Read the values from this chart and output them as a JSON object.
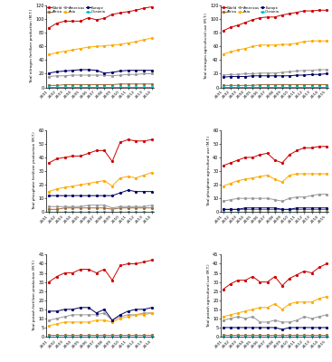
{
  "years_prod": [
    2001,
    2002,
    2003,
    2004,
    2005,
    2006,
    2007,
    2008,
    2009,
    2010,
    2011,
    2012,
    2013,
    2014
  ],
  "years_use": [
    2001,
    2002,
    2003,
    2004,
    2005,
    2006,
    2007,
    2008,
    2009,
    2010,
    2011,
    2012,
    2013,
    2014,
    2015
  ],
  "colors": {
    "World": "#cc0000",
    "Africa": "#996633",
    "Americas": "#999999",
    "Asia": "#ffaa00",
    "Europe": "#000066",
    "Oceania": "#00bbcc"
  },
  "N_prod": {
    "World": [
      87,
      94,
      97,
      97,
      97,
      102,
      99,
      101,
      107,
      109,
      111,
      113,
      116,
      118
    ],
    "Asia": [
      48,
      51,
      53,
      55,
      57,
      59,
      60,
      61,
      62,
      63,
      65,
      67,
      70,
      72
    ],
    "Europe": [
      21,
      23,
      24,
      25,
      26,
      26,
      25,
      21,
      22,
      24,
      25,
      25,
      25,
      25
    ],
    "Americas": [
      16,
      17,
      17,
      18,
      18,
      18,
      18,
      18,
      17,
      18,
      19,
      19,
      20,
      20
    ],
    "Africa": [
      3,
      3,
      4,
      4,
      4,
      4,
      4,
      4,
      4,
      5,
      5,
      5,
      5,
      5
    ],
    "Oceania": [
      1,
      1,
      1,
      1,
      1,
      1,
      1,
      1,
      1,
      1,
      1,
      1,
      1,
      1
    ]
  },
  "N_use": {
    "World": [
      83,
      88,
      91,
      95,
      99,
      102,
      103,
      103,
      106,
      108,
      110,
      112,
      112,
      113,
      113
    ],
    "Asia": [
      49,
      52,
      55,
      57,
      60,
      62,
      62,
      62,
      63,
      63,
      65,
      67,
      68,
      68,
      68
    ],
    "Americas": [
      18,
      19,
      19,
      20,
      20,
      21,
      21,
      21,
      22,
      23,
      24,
      25,
      25,
      26,
      26
    ],
    "Europe": [
      15,
      16,
      16,
      16,
      17,
      17,
      17,
      17,
      17,
      17,
      18,
      18,
      19,
      19,
      20
    ],
    "Africa": [
      3,
      3,
      3,
      3,
      3,
      4,
      4,
      4,
      4,
      4,
      4,
      4,
      4,
      4,
      4
    ],
    "Oceania": [
      1,
      1,
      1,
      1,
      1,
      1,
      1,
      1,
      1,
      1,
      1,
      1,
      1,
      1,
      1
    ]
  },
  "P_prod": {
    "World": [
      36,
      39,
      40,
      41,
      41,
      43,
      45,
      45,
      37,
      51,
      53,
      52,
      52,
      53
    ],
    "Asia": [
      15,
      17,
      18,
      19,
      20,
      21,
      22,
      23,
      19,
      25,
      26,
      25,
      27,
      29
    ],
    "Europe": [
      12,
      12,
      12,
      12,
      12,
      12,
      12,
      12,
      12,
      14,
      16,
      15,
      15,
      15
    ],
    "Americas": [
      4,
      4,
      4,
      4,
      4,
      5,
      5,
      5,
      3,
      4,
      4,
      4,
      4,
      5
    ],
    "Africa": [
      2,
      2,
      3,
      3,
      3,
      3,
      3,
      3,
      2,
      3,
      3,
      3,
      3,
      3
    ],
    "Oceania": [
      0.5,
      0.5,
      0.5,
      0.5,
      0.5,
      0.5,
      0.5,
      0.5,
      0.5,
      0.5,
      0.5,
      0.5,
      0.5,
      0.5
    ]
  },
  "P_use": {
    "World": [
      34,
      36,
      38,
      40,
      40,
      42,
      43,
      38,
      36,
      42,
      45,
      47,
      47,
      48,
      48
    ],
    "Asia": [
      19,
      21,
      23,
      24,
      25,
      26,
      27,
      24,
      22,
      27,
      28,
      28,
      28,
      28,
      28
    ],
    "Americas": [
      8,
      9,
      10,
      10,
      10,
      10,
      10,
      9,
      8,
      10,
      11,
      11,
      12,
      13,
      13
    ],
    "Europe": [
      2,
      2,
      2,
      3,
      3,
      3,
      3,
      3,
      2,
      2,
      3,
      3,
      3,
      3,
      3
    ],
    "Africa": [
      2,
      2,
      2,
      2,
      2,
      2,
      2,
      2,
      2,
      2,
      2,
      2,
      2,
      2,
      2
    ],
    "Oceania": [
      0.5,
      0.5,
      0.5,
      0.5,
      0.5,
      0.5,
      0.5,
      0.5,
      0.5,
      0.5,
      0.5,
      0.5,
      0.5,
      0.5,
      0.5
    ]
  },
  "K_prod": {
    "World": [
      30,
      33,
      35,
      35,
      37,
      37,
      35,
      37,
      31,
      39,
      40,
      40,
      41,
      42
    ],
    "Europe": [
      14,
      14,
      15,
      15,
      16,
      16,
      13,
      15,
      9,
      12,
      14,
      15,
      15,
      16
    ],
    "Americas": [
      9,
      10,
      11,
      12,
      12,
      12,
      12,
      13,
      9,
      11,
      12,
      12,
      13,
      13
    ],
    "Asia": [
      6,
      7,
      8,
      8,
      8,
      8,
      9,
      9,
      8,
      10,
      11,
      12,
      12,
      13
    ],
    "Africa": [
      1,
      1,
      1,
      1,
      1,
      1,
      1,
      1,
      1,
      1,
      1,
      1,
      1,
      1
    ],
    "Oceania": [
      0.2,
      0.2,
      0.2,
      0.2,
      0.2,
      0.2,
      0.2,
      0.2,
      0.2,
      0.2,
      0.2,
      0.2,
      0.2,
      0.2
    ]
  },
  "K_use": {
    "World": [
      26,
      29,
      31,
      31,
      33,
      30,
      30,
      33,
      28,
      32,
      34,
      36,
      35,
      38,
      40
    ],
    "Asia": [
      11,
      12,
      13,
      14,
      15,
      16,
      16,
      18,
      15,
      18,
      19,
      19,
      19,
      21,
      22
    ],
    "Americas": [
      9,
      10,
      11,
      10,
      11,
      8,
      8,
      9,
      8,
      8,
      9,
      11,
      10,
      11,
      12
    ],
    "Europe": [
      5,
      5,
      5,
      5,
      5,
      5,
      5,
      5,
      4,
      5,
      5,
      5,
      5,
      5,
      5
    ],
    "Africa": [
      1,
      1,
      1,
      1,
      1,
      1,
      1,
      1,
      1,
      1,
      1,
      1,
      1,
      1,
      1
    ],
    "Oceania": [
      0.2,
      0.2,
      0.2,
      0.2,
      0.2,
      0.2,
      0.2,
      0.2,
      0.2,
      0.2,
      0.2,
      0.2,
      0.2,
      0.2,
      0.2
    ]
  },
  "ylims": {
    "N_prod": [
      0,
      120
    ],
    "N_use": [
      0,
      120
    ],
    "P_prod": [
      0,
      60
    ],
    "P_use": [
      0,
      60
    ],
    "K_prod": [
      0,
      45
    ],
    "K_use": [
      0,
      45
    ]
  },
  "yticks": {
    "N_prod": [
      0,
      20,
      40,
      60,
      80,
      100,
      120
    ],
    "N_use": [
      0,
      20,
      40,
      60,
      80,
      100,
      120
    ],
    "P_prod": [
      0,
      10,
      20,
      30,
      40,
      50,
      60
    ],
    "P_use": [
      0,
      10,
      20,
      30,
      40,
      50,
      60
    ],
    "K_prod": [
      0,
      5,
      10,
      15,
      20,
      25,
      30,
      35,
      40,
      45
    ],
    "K_use": [
      0,
      5,
      10,
      15,
      20,
      25,
      30,
      35,
      40,
      45
    ]
  },
  "ylabels": {
    "N_prod": "Total nitrogen fertilizer production (M.T.)",
    "N_use": "Total nitrogen agricultural use (M.T.)",
    "P_prod": "Total phosphate fertilizer production (M.T.)",
    "P_use": "Total phosphate agricultural use (M.T.)",
    "K_prod": "Total potash fertilizer production (M.T.)",
    "K_use": "Total potash agricultural use (M.T.)"
  },
  "legend_row1": [
    "World",
    "Africa",
    "Americas",
    "Asia",
    "Europe",
    "Oceania"
  ],
  "series_order": [
    "World",
    "Africa",
    "Americas",
    "Asia",
    "Europe",
    "Oceania"
  ]
}
